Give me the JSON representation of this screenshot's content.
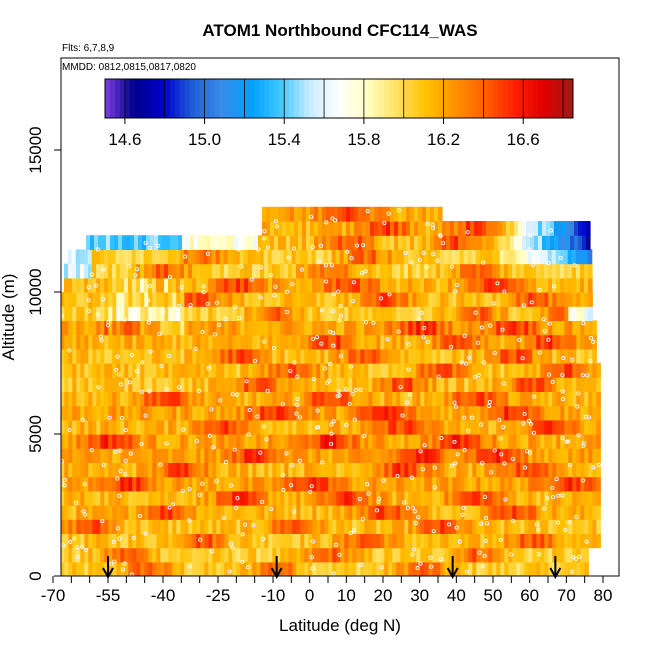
{
  "chart_data": {
    "type": "heatmap",
    "title": "ATOM1 Northbound CFC114_WAS",
    "subtitle_flights": "Flts: 6,7,8,9",
    "subtitle_dates": "MMDD: 0812,0815,0817,0820",
    "xlabel": "Latitude (deg N)",
    "ylabel": "Altitude (m)",
    "xlim": [
      -70,
      80
    ],
    "ylim": [
      0,
      17500
    ],
    "x_ticks": [
      -70,
      -55,
      -40,
      -25,
      -10,
      0,
      10,
      20,
      30,
      40,
      50,
      60,
      70,
      80
    ],
    "x_tick_labels": [
      "-70",
      "-55",
      "-40",
      "-25",
      "-10",
      "0",
      "10",
      "20",
      "30",
      "40",
      "50",
      "60",
      "70",
      "80"
    ],
    "y_ticks": [
      0,
      5000,
      10000,
      15000
    ],
    "y_tick_labels": [
      "0",
      "5000",
      "10000",
      "15000"
    ],
    "colorbar": {
      "min": 14.5,
      "max": 16.85,
      "ticks": [
        14.6,
        15.0,
        15.4,
        15.8,
        16.2,
        16.6
      ],
      "tick_labels": [
        "14.6",
        "15.0",
        "15.4",
        "15.8",
        "16.2",
        "16.6"
      ],
      "colors": [
        "#7b3fe0",
        "#00008b",
        "#0000cd",
        "#1e5fd8",
        "#3a8be8",
        "#00a0ff",
        "#40c8ff",
        "#c8ecff",
        "#ffffff",
        "#ffffc0",
        "#ffe060",
        "#ffc000",
        "#ff9000",
        "#ff6000",
        "#ff2000",
        "#e00000",
        "#a01818"
      ]
    },
    "arrow_latitudes": [
      -55,
      -9,
      39,
      67
    ],
    "layers": [
      {
        "alt": 250,
        "x0": -68,
        "x1": 76,
        "base": 16.05,
        "hot": [
          -45,
          -10,
          30
        ]
      },
      {
        "alt": 750,
        "x0": -68,
        "x1": 76,
        "base": 16.05,
        "hot": [
          -50,
          5,
          45
        ]
      },
      {
        "alt": 1250,
        "x0": -68,
        "x1": 79,
        "base": 16.1,
        "hot": [
          -30,
          15,
          60
        ]
      },
      {
        "alt": 1750,
        "x0": -68,
        "x1": 79,
        "base": 16.1,
        "hot": [
          -60,
          -5,
          35
        ]
      },
      {
        "alt": 2250,
        "x0": -68,
        "x1": 79,
        "base": 16.15,
        "hot": [
          -40,
          20,
          55
        ]
      },
      {
        "alt": 2750,
        "x0": -68,
        "x1": 79,
        "base": 16.15,
        "hot": [
          -20,
          10,
          45
        ]
      },
      {
        "alt": 3250,
        "x0": -68,
        "x1": 79,
        "base": 16.2,
        "hot": [
          -50,
          0,
          70
        ]
      },
      {
        "alt": 3750,
        "x0": -68,
        "x1": 79,
        "base": 16.15,
        "hot": [
          -35,
          25,
          60
        ]
      },
      {
        "alt": 4250,
        "x0": -68,
        "x1": 79,
        "base": 16.2,
        "hot": [
          -15,
          30,
          50
        ]
      },
      {
        "alt": 4750,
        "x0": -68,
        "x1": 79,
        "base": 16.2,
        "hot": [
          -55,
          5,
          40
        ]
      },
      {
        "alt": 5250,
        "x0": -68,
        "x1": 79,
        "base": 16.15,
        "hot": [
          -25,
          25,
          65
        ]
      },
      {
        "alt": 5750,
        "x0": -68,
        "x1": 79,
        "base": 16.2,
        "hot": [
          -10,
          20,
          55
        ]
      },
      {
        "alt": 6250,
        "x0": -68,
        "x1": 79,
        "base": 16.15,
        "hot": [
          -40,
          5,
          45
        ]
      },
      {
        "alt": 6750,
        "x0": -68,
        "x1": 79,
        "base": 16.1,
        "hot": [
          -15,
          25,
          60
        ]
      },
      {
        "alt": 7250,
        "x0": -68,
        "x1": 79,
        "base": 16.1,
        "hot": [
          -5,
          35,
          70
        ]
      },
      {
        "alt": 7750,
        "x0": -68,
        "x1": 78,
        "base": 16.1,
        "hot": [
          -20,
          15,
          55
        ]
      },
      {
        "alt": 8250,
        "x0": -68,
        "x1": 78,
        "base": 16.15,
        "hot": [
          5,
          40,
          65
        ]
      },
      {
        "alt": 8750,
        "x0": -68,
        "x1": 78,
        "base": 16.2,
        "hot": [
          -50,
          30,
          55
        ]
      },
      {
        "alt": 9250,
        "x0": -68,
        "x1": 77,
        "base": 16.05,
        "hot": [
          -10,
          45,
          70
        ]
      },
      {
        "alt": 9750,
        "x0": -68,
        "x1": 77,
        "base": 16.1,
        "hot": [
          -30,
          20,
          60
        ]
      },
      {
        "alt": 10250,
        "x0": -67,
        "x1": 77,
        "base": 16.15,
        "hot": [
          -20,
          10,
          50
        ]
      },
      {
        "alt": 10750,
        "x0": -67,
        "x1": 76,
        "base": 16.05,
        "hot": [
          -40,
          5,
          45
        ]
      },
      {
        "alt": 11250,
        "x0": -66,
        "x1": 76,
        "base": 16.05,
        "hot": [
          -30,
          15
        ]
      },
      {
        "alt": 11750,
        "x0": -61,
        "x1": 76,
        "base": 16.1,
        "hot": [
          10,
          40
        ]
      },
      {
        "alt": 12250,
        "x0": -13,
        "x1": 76,
        "base": 16.15,
        "hot": [
          20,
          45
        ]
      },
      {
        "alt": 12750,
        "x0": -13,
        "x1": 36,
        "base": 16.2,
        "hot": [
          10
        ]
      }
    ]
  }
}
